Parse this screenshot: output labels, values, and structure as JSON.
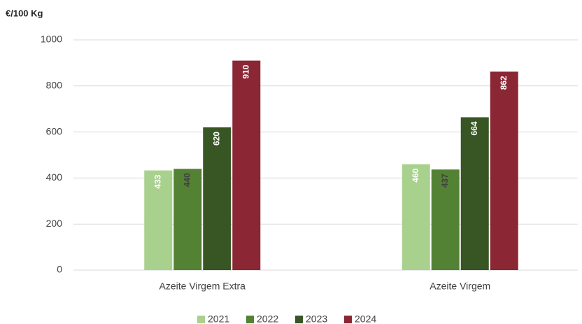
{
  "chart_data": {
    "type": "bar",
    "y_axis_label": "€/100 Kg",
    "categories": [
      "Azeite Virgem Extra",
      "Azeite Virgem"
    ],
    "series": [
      {
        "name": "2021",
        "color": "#a9d18e",
        "label_color": "#ffffff",
        "values": [
          433,
          460
        ]
      },
      {
        "name": "2022",
        "color": "#548235",
        "label_color": "#404040",
        "values": [
          440,
          437
        ]
      },
      {
        "name": "2023",
        "color": "#375623",
        "label_color": "#ffffff",
        "values": [
          620,
          664
        ]
      },
      {
        "name": "2024",
        "color": "#8b2635",
        "label_color": "#ffffff",
        "values": [
          910,
          862
        ]
      }
    ],
    "ylim": [
      0,
      1000
    ],
    "yticks": [
      0,
      200,
      400,
      600,
      800,
      1000
    ],
    "grid": true,
    "legend": "bottom"
  }
}
